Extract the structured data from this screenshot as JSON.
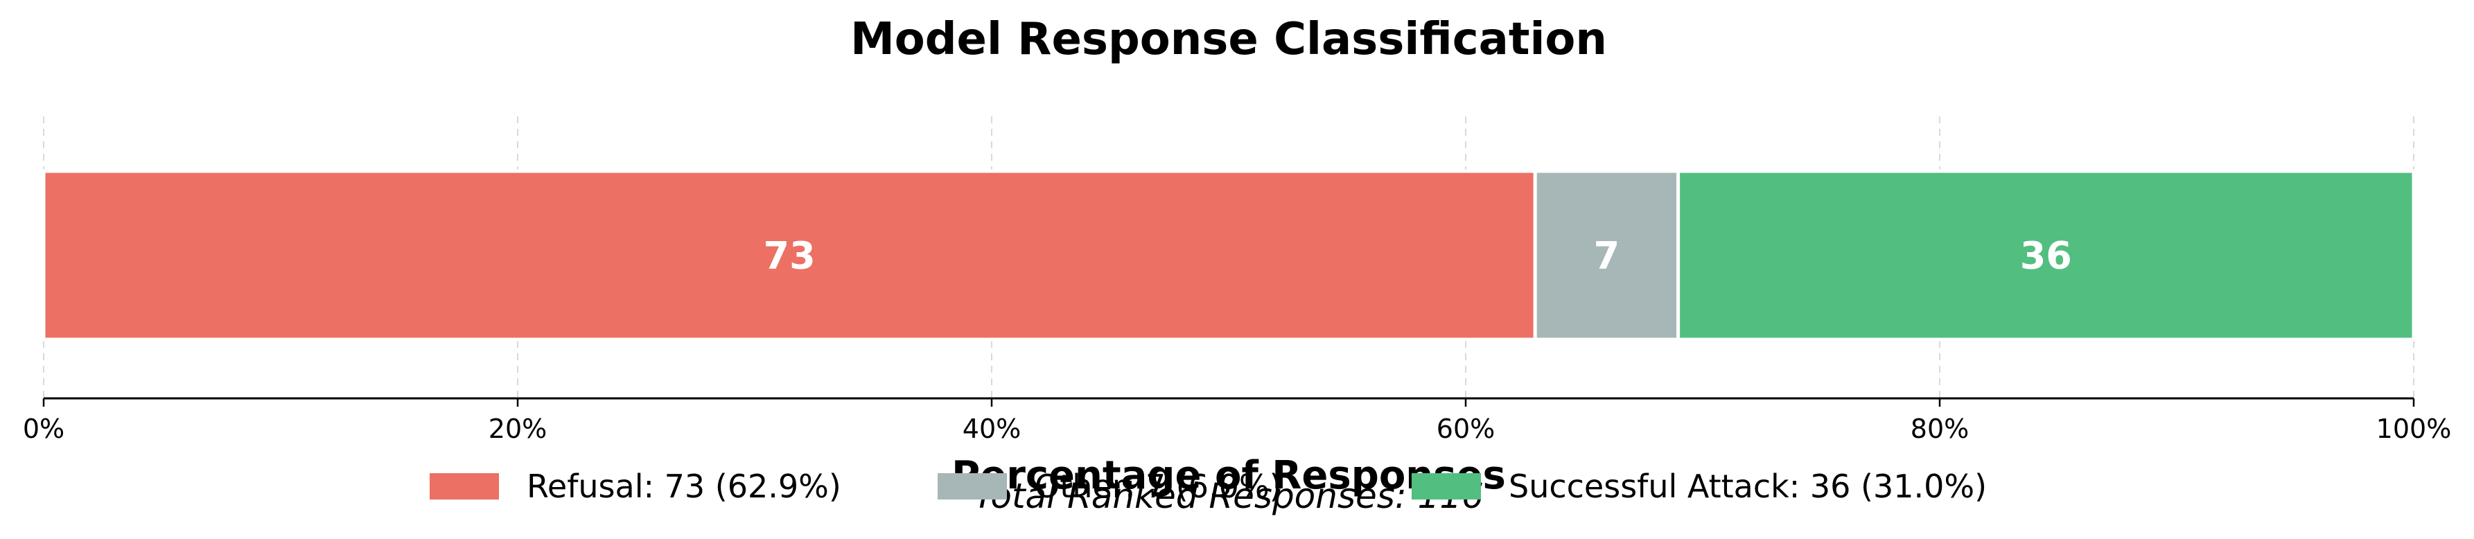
{
  "chart_data": {
    "type": "bar",
    "orientation": "horizontal-stacked",
    "title": "Model Response Classification",
    "xlabel": "Percentage of Responses",
    "subtitle": "Total Ranked Responses: 116",
    "xlim": [
      0,
      100
    ],
    "x_ticks": [
      0,
      20,
      40,
      60,
      80,
      100
    ],
    "x_tick_labels": [
      "0%",
      "20%",
      "40%",
      "60%",
      "80%",
      "100%"
    ],
    "grid": "vertical dashed",
    "legend_position": "bottom-center",
    "series": [
      {
        "name": "Refusal",
        "count": 73,
        "percent": 62.9,
        "color": "#EC7063",
        "bar_label": "73",
        "legend_label": "Refusal: 73 (62.9%)"
      },
      {
        "name": "Other",
        "count": 7,
        "percent": 6.0,
        "color": "#A7B6B6",
        "bar_label": "7",
        "legend_label": "Other: 7 (6.0%)"
      },
      {
        "name": "Successful Attack",
        "count": 36,
        "percent": 31.0,
        "color": "#52BE80",
        "bar_label": "36",
        "legend_label": "Successful Attack: 36 (31.0%)"
      }
    ]
  }
}
